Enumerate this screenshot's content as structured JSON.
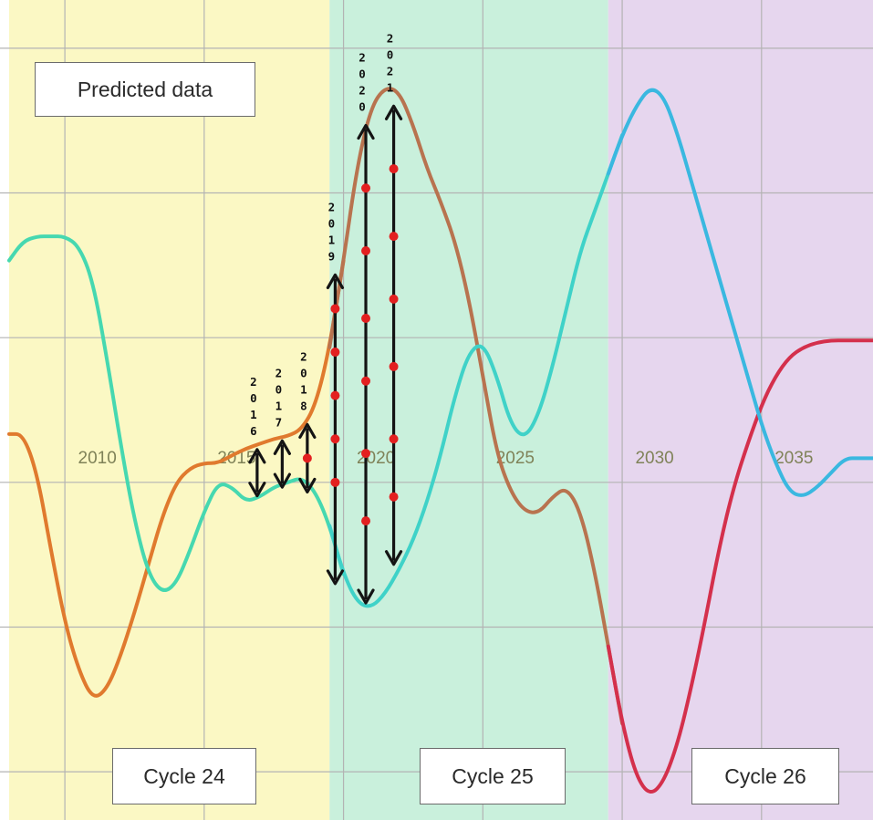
{
  "chart_data": {
    "type": "line",
    "title": "",
    "annotations": {
      "predicted_label": "Predicted data",
      "cycles": [
        {
          "label": "Cycle 24",
          "start": 2007.0,
          "end": 2018.5,
          "color": "#fbf8c4"
        },
        {
          "label": "Cycle 25",
          "start": 2018.5,
          "end": 2028.5,
          "color": "#c9f0dc"
        },
        {
          "label": "Cycle 26",
          "start": 2028.5,
          "end": 2038.0,
          "color": "#e6d6ee"
        }
      ],
      "year_markers": [
        {
          "label": "2016",
          "x": 2015.9,
          "y_top": 0.84,
          "y_bottom": 0.36,
          "dots": []
        },
        {
          "label": "2017",
          "x": 2016.8,
          "y_top": 0.93,
          "y_bottom": 0.45,
          "dots": []
        },
        {
          "label": "2018",
          "x": 2017.7,
          "y_top": 1.1,
          "y_bottom": 0.4,
          "dots": [
            0.75
          ]
        },
        {
          "label": "2019",
          "x": 2018.7,
          "y_top": 2.65,
          "y_bottom": -0.55,
          "dots": [
            2.3,
            1.85,
            1.4,
            0.95,
            0.5
          ]
        },
        {
          "label": "2020",
          "x": 2019.8,
          "y_top": 4.2,
          "y_bottom": -0.75,
          "dots": [
            3.55,
            2.9,
            2.2,
            1.55,
            0.8,
            0.1
          ]
        },
        {
          "label": "2021",
          "x": 2020.8,
          "y_top": 4.4,
          "y_bottom": -0.35,
          "dots": [
            3.75,
            3.05,
            2.4,
            1.7,
            0.95,
            0.35
          ]
        }
      ]
    },
    "x_ticks": [
      2010,
      2015,
      2020,
      2025,
      2030,
      2035
    ],
    "xlim": [
      2007.0,
      2038.0
    ],
    "ylim": [
      -3.0,
      5.5
    ],
    "grid": true,
    "series": [
      {
        "color_segments": [
          {
            "from": 2007.0,
            "to": 2018.5,
            "color": "#e07a2e"
          },
          {
            "from": 2018.5,
            "to": 2028.5,
            "color": "#b8734f"
          },
          {
            "from": 2028.5,
            "to": 2038.0,
            "color": "#d4304c"
          }
        ],
        "x": [
          2007.0,
          2007.5,
          2008.0,
          2008.5,
          2009.0,
          2009.5,
          2010.0,
          2010.5,
          2011.0,
          2011.5,
          2012.0,
          2012.5,
          2013.0,
          2013.5,
          2014.0,
          2014.5,
          2015.0,
          2015.5,
          2016.0,
          2016.5,
          2017.0,
          2017.5,
          2018.0,
          2018.5,
          2019.0,
          2019.5,
          2020.0,
          2020.5,
          2021.0,
          2021.5,
          2022.0,
          2022.5,
          2023.0,
          2023.5,
          2024.0,
          2024.5,
          2025.0,
          2025.5,
          2026.0,
          2026.5,
          2027.0,
          2027.5,
          2028.0,
          2028.5,
          2029.0,
          2029.5,
          2030.0,
          2030.5,
          2031.0,
          2031.5,
          2032.0,
          2032.5,
          2033.0,
          2033.5,
          2034.0,
          2034.5,
          2035.0,
          2035.5,
          2036.0,
          2036.5,
          2037.0,
          2037.5,
          2038.0
        ],
        "values": [
          1.0,
          1.0,
          0.6,
          -0.2,
          -0.95,
          -1.45,
          -1.75,
          -1.65,
          -1.3,
          -0.85,
          -0.35,
          0.15,
          0.5,
          0.65,
          0.7,
          0.7,
          0.78,
          0.85,
          0.9,
          0.95,
          0.98,
          1.05,
          1.3,
          1.9,
          2.8,
          3.8,
          4.4,
          4.6,
          4.55,
          4.2,
          3.75,
          3.4,
          3.0,
          2.4,
          1.6,
          0.8,
          0.4,
          0.2,
          0.18,
          0.35,
          0.45,
          0.2,
          -0.4,
          -1.2,
          -2.0,
          -2.55,
          -2.75,
          -2.6,
          -2.2,
          -1.6,
          -0.9,
          -0.15,
          0.45,
          0.9,
          1.3,
          1.6,
          1.8,
          1.9,
          1.95,
          1.97,
          1.97,
          1.97,
          1.97
        ]
      },
      {
        "color_segments": [
          {
            "from": 2007.0,
            "to": 2018.5,
            "color": "#46d8b0"
          },
          {
            "from": 2018.5,
            "to": 2028.5,
            "color": "#3fd2c8"
          },
          {
            "from": 2028.5,
            "to": 2038.0,
            "color": "#3ab8e0"
          }
        ],
        "x": [
          2007.0,
          2007.5,
          2008.0,
          2008.5,
          2009.0,
          2009.5,
          2010.0,
          2010.5,
          2011.0,
          2011.5,
          2012.0,
          2012.5,
          2013.0,
          2013.5,
          2014.0,
          2014.5,
          2015.0,
          2015.5,
          2016.0,
          2016.5,
          2017.0,
          2017.5,
          2018.0,
          2018.5,
          2019.0,
          2019.5,
          2020.0,
          2020.5,
          2021.0,
          2021.5,
          2022.0,
          2022.5,
          2023.0,
          2023.5,
          2024.0,
          2024.5,
          2025.0,
          2025.5,
          2026.0,
          2026.5,
          2027.0,
          2027.5,
          2028.0,
          2028.5,
          2029.0,
          2029.5,
          2030.0,
          2030.5,
          2031.0,
          2031.5,
          2032.0,
          2032.5,
          2033.0,
          2033.5,
          2034.0,
          2034.5,
          2035.0,
          2035.5,
          2036.0,
          2036.5,
          2037.0,
          2037.5,
          2038.0
        ],
        "values": [
          2.8,
          3.0,
          3.05,
          3.05,
          3.05,
          2.95,
          2.6,
          1.8,
          0.9,
          0.1,
          -0.45,
          -0.65,
          -0.55,
          -0.2,
          0.2,
          0.5,
          0.45,
          0.3,
          0.35,
          0.45,
          0.5,
          0.55,
          0.4,
          0.05,
          -0.45,
          -0.75,
          -0.8,
          -0.65,
          -0.4,
          -0.1,
          0.3,
          0.8,
          1.4,
          1.85,
          1.95,
          1.6,
          1.1,
          0.95,
          1.2,
          1.7,
          2.3,
          2.9,
          3.3,
          3.7,
          4.1,
          4.4,
          4.6,
          4.5,
          4.1,
          3.6,
          3.1,
          2.6,
          2.1,
          1.6,
          1.1,
          0.7,
          0.4,
          0.35,
          0.45,
          0.6,
          0.75,
          0.75,
          0.75
        ]
      }
    ]
  },
  "labels": {
    "predicted": "Predicted data",
    "cycle24": "Cycle 24",
    "cycle25": "Cycle 25",
    "cycle26": "Cycle 26"
  },
  "colors": {
    "grid": "#b3b3b3",
    "tick_text": "#7f8258",
    "arrow": "#141414",
    "dot": "#e32020"
  }
}
